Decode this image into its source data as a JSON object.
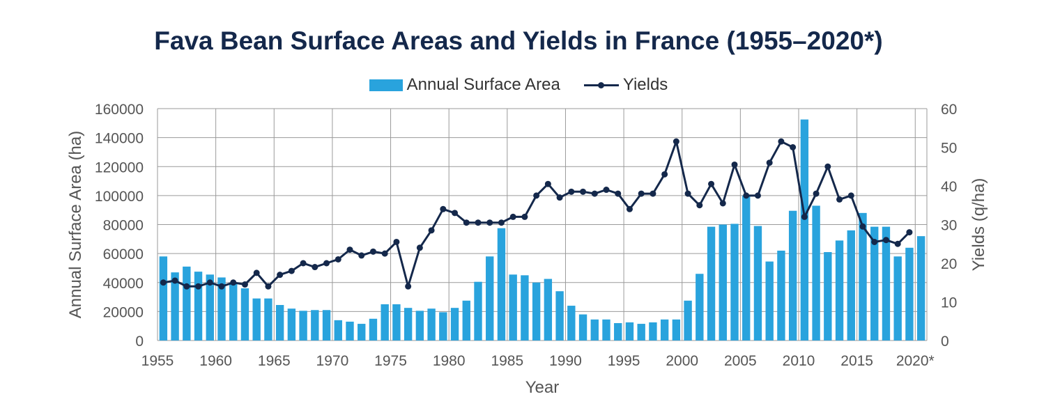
{
  "title": "Fava Bean Surface Areas and Yields in France (1955–2020*)",
  "legend": {
    "bars_label": "Annual Surface Area",
    "line_label": "Yields"
  },
  "colors": {
    "bars": "#29a3dd",
    "line": "#14284b",
    "title": "#14284b",
    "grid": "#9a9a9a",
    "axis_text": "#555555"
  },
  "chart_data": {
    "type": "bar",
    "title": "Fava Bean Surface Areas and Yields in France (1955–2020*)",
    "xlabel": "Year",
    "ylabel_left": "Annual Surface Area (ha)",
    "ylabel_right": "Yields (q/ha)",
    "ylim_left": [
      0,
      160000
    ],
    "ylim_right": [
      0,
      60
    ],
    "xlim": [
      1955,
      2020
    ],
    "x_ticks": [
      {
        "value": 1955,
        "label": "1955"
      },
      {
        "value": 1960,
        "label": "1960"
      },
      {
        "value": 1965,
        "label": "1965"
      },
      {
        "value": 1970,
        "label": "1970"
      },
      {
        "value": 1975,
        "label": "1975"
      },
      {
        "value": 1980,
        "label": "1980"
      },
      {
        "value": 1985,
        "label": "1985"
      },
      {
        "value": 1990,
        "label": "1990"
      },
      {
        "value": 1995,
        "label": "1995"
      },
      {
        "value": 2000,
        "label": "2000"
      },
      {
        "value": 2005,
        "label": "2005"
      },
      {
        "value": 2010,
        "label": "2010"
      },
      {
        "value": 2015,
        "label": "2015"
      },
      {
        "value": 2020,
        "label": "2020*"
      }
    ],
    "y_ticks_left": [
      0,
      20000,
      40000,
      60000,
      80000,
      100000,
      120000,
      140000,
      160000
    ],
    "y_ticks_right": [
      0,
      10,
      20,
      30,
      40,
      50,
      60
    ],
    "grid": true,
    "legend_position": "top-center",
    "series": [
      {
        "name": "Annual Surface Area",
        "type": "bar",
        "axis": "left",
        "x": [
          1955,
          1956,
          1957,
          1958,
          1959,
          1960,
          1961,
          1962,
          1963,
          1964,
          1965,
          1966,
          1967,
          1968,
          1969,
          1970,
          1971,
          1972,
          1973,
          1974,
          1975,
          1976,
          1977,
          1978,
          1979,
          1980,
          1981,
          1982,
          1983,
          1984,
          1985,
          1986,
          1987,
          1988,
          1989,
          1990,
          1991,
          1992,
          1993,
          1994,
          1995,
          1996,
          1997,
          1998,
          1999,
          2000,
          2001,
          2002,
          2003,
          2004,
          2005,
          2006,
          2007,
          2008,
          2009,
          2010,
          2011,
          2012,
          2013,
          2014,
          2015,
          2016,
          2017,
          2018,
          2019,
          2020
        ],
        "values": [
          58000,
          47000,
          51000,
          47500,
          45500,
          43500,
          40000,
          36000,
          29000,
          29000,
          24500,
          22000,
          20500,
          21000,
          21000,
          14000,
          13000,
          11500,
          15000,
          25000,
          25000,
          22500,
          20500,
          22000,
          19500,
          22500,
          27500,
          40500,
          58000,
          77500,
          45500,
          45000,
          40000,
          42500,
          34000,
          24000,
          18000,
          14500,
          14500,
          12000,
          12500,
          11500,
          12500,
          14500,
          14500,
          27500,
          46000,
          78500,
          80000,
          80500,
          100000,
          79000,
          54500,
          62000,
          89500,
          152500,
          93000,
          61000,
          69000,
          76000,
          88000,
          78500,
          78500,
          58000,
          64000,
          72000
        ]
      },
      {
        "name": "Yields",
        "type": "line",
        "axis": "right",
        "x": [
          1955,
          1956,
          1957,
          1958,
          1959,
          1960,
          1961,
          1962,
          1963,
          1964,
          1965,
          1966,
          1967,
          1968,
          1969,
          1970,
          1971,
          1972,
          1973,
          1974,
          1975,
          1976,
          1977,
          1978,
          1979,
          1980,
          1981,
          1982,
          1983,
          1984,
          1985,
          1986,
          1987,
          1988,
          1989,
          1990,
          1991,
          1992,
          1993,
          1994,
          1995,
          1996,
          1997,
          1998,
          1999,
          2000,
          2001,
          2002,
          2003,
          2004,
          2005,
          2006,
          2007,
          2008,
          2009,
          2010,
          2011,
          2012,
          2013,
          2014,
          2015,
          2016,
          2017,
          2018,
          2019
        ],
        "values": [
          15,
          15.5,
          14,
          14,
          15,
          14,
          15,
          14.5,
          17.5,
          14,
          17,
          18,
          20,
          19,
          20,
          21,
          23.5,
          22,
          23,
          22.5,
          25.5,
          14,
          24,
          28.5,
          34,
          33,
          30.5,
          30.5,
          30.5,
          30.5,
          32,
          32,
          37.5,
          40.5,
          37,
          38.5,
          38.5,
          38,
          39,
          38,
          34,
          38,
          38,
          43,
          51.5,
          38,
          35,
          40.5,
          35.5,
          45.5,
          37.5,
          37.5,
          46,
          51.5,
          50,
          32,
          38,
          45,
          36.5,
          37.5,
          29.5,
          25.5,
          26,
          25,
          28
        ]
      }
    ]
  }
}
